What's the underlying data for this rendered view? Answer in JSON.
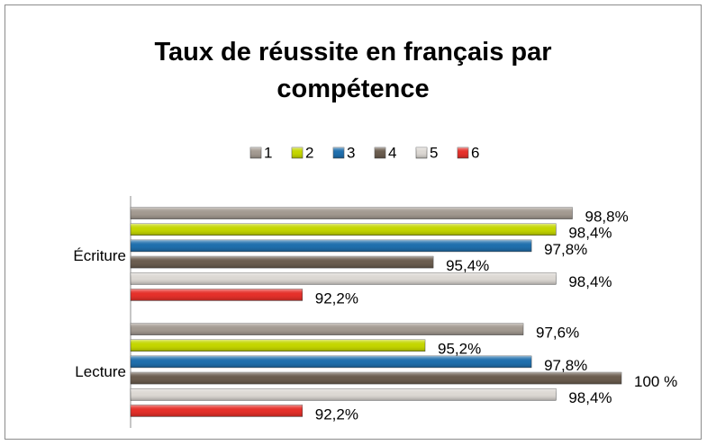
{
  "chart_data": {
    "type": "bar",
    "orientation": "horizontal",
    "title": "Taux de réussite en français par compétence",
    "categories": [
      "Écriture",
      "Lecture"
    ],
    "series": [
      {
        "name": "1",
        "color": "#a39a91",
        "values": [
          98.8,
          97.6
        ],
        "value_labels": [
          "98,8%",
          "97,6%"
        ]
      },
      {
        "name": "2",
        "color": "#c4d600",
        "values": [
          98.4,
          95.2
        ],
        "value_labels": [
          "98,4%",
          "95,2%"
        ]
      },
      {
        "name": "3",
        "color": "#1f6fad",
        "values": [
          97.8,
          97.8
        ],
        "value_labels": [
          "97,8%",
          "97,8%"
        ]
      },
      {
        "name": "4",
        "color": "#6b5d4f",
        "values": [
          95.4,
          100
        ],
        "value_labels": [
          "95,4%",
          "100 %"
        ]
      },
      {
        "name": "5",
        "color": "#dcd8d3",
        "values": [
          98.4,
          98.4
        ],
        "value_labels": [
          "98,4%",
          "98,4%"
        ]
      },
      {
        "name": "6",
        "color": "#e5302a",
        "values": [
          92.2,
          92.2
        ],
        "value_labels": [
          "92,2%",
          "92,2%"
        ]
      }
    ],
    "xlim": [
      88,
      100
    ],
    "legend": "top"
  }
}
